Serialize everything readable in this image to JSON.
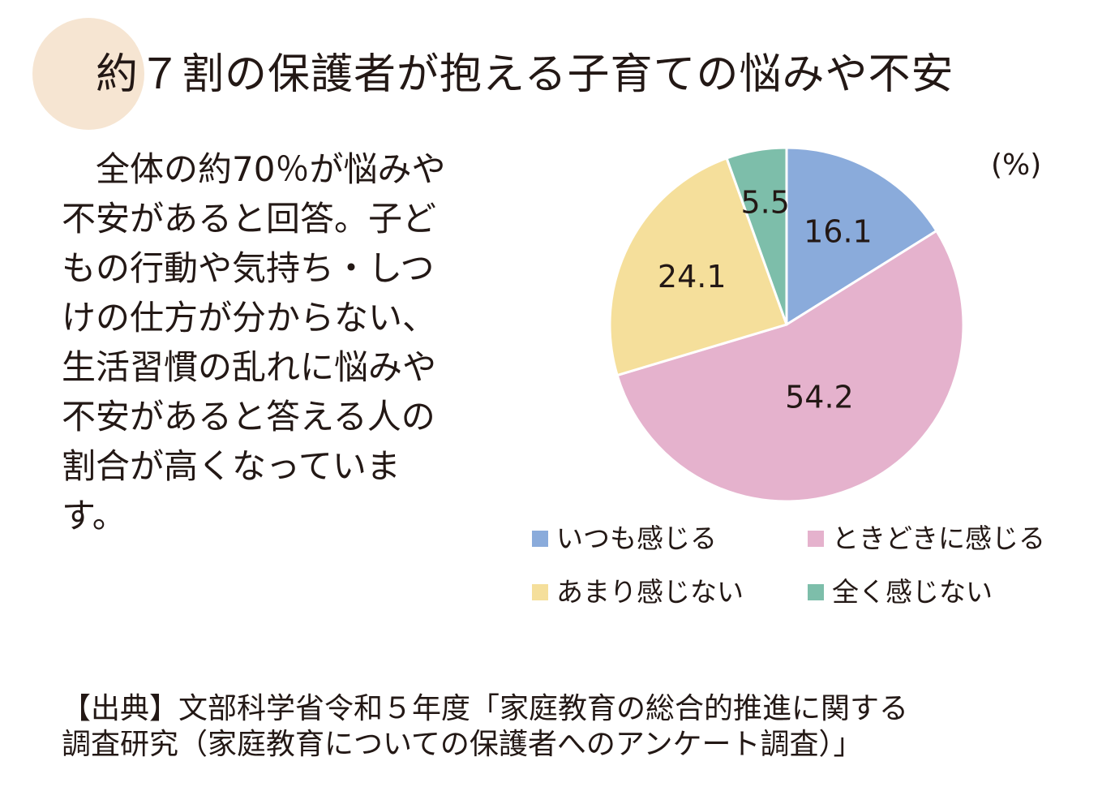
{
  "title": "約７割の保護者が抱える子育ての悩みや不安",
  "description": "全体の約70％が悩みや不安があると回答。子どもの行動や気持ち・しつけの仕方が分からない、生活習慣の乱れに悩みや不安があると答える人の割合が高くなっています。",
  "source": {
    "line1": "【出典】文部科学省令和５年度「家庭教育の総合的推進に関する",
    "line2": "調査研究（家庭教育についての保護者へのアンケート調査）」"
  },
  "colors": {
    "deco_circle": "#f6e5d2",
    "text": "#231815"
  },
  "chart_data": {
    "type": "pie",
    "unit_label": "(%)",
    "categories": [
      "いつも感じる",
      "ときどきに感じる",
      "あまり感じない",
      "全く感じない"
    ],
    "values": [
      16.1,
      54.2,
      24.1,
      5.5
    ],
    "value_labels": [
      "16.1",
      "54.2",
      "24.1",
      "5.5"
    ],
    "colors": [
      "#8aabdb",
      "#e5b2cd",
      "#f5df9b",
      "#7dbeaa"
    ],
    "start": "12 o'clock",
    "direction": "clockwise",
    "legend_position": "bottom"
  }
}
